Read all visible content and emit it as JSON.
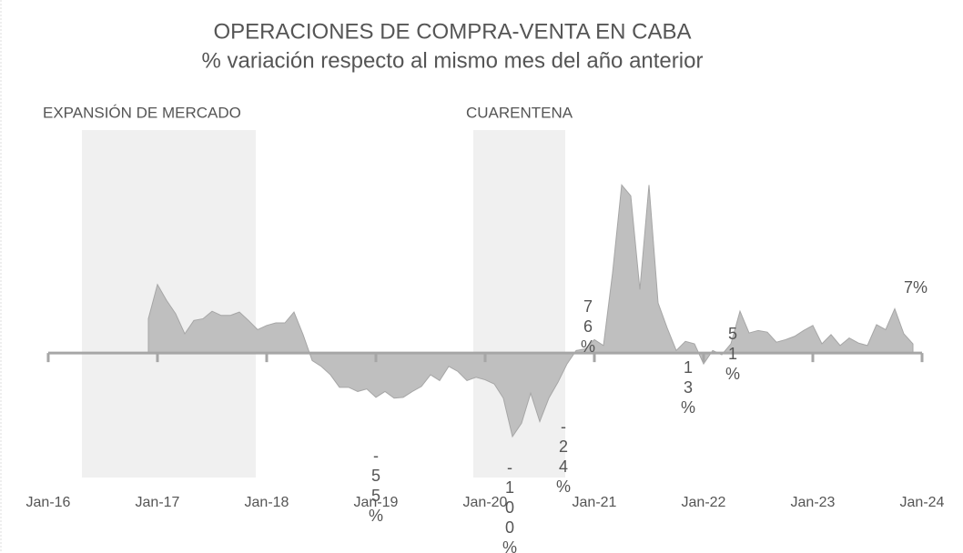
{
  "chart_data": {
    "type": "area",
    "title": "OPERACIONES DE COMPRA-VENTA EN CABA",
    "subtitle": "% variación respecto al mismo mes del año anterior",
    "x": [
      "2016-12",
      "2017-01",
      "2017-02",
      "2017-03",
      "2017-04",
      "2017-05",
      "2017-06",
      "2017-07",
      "2017-08",
      "2017-09",
      "2017-10",
      "2017-11",
      "2017-12",
      "2018-01",
      "2018-02",
      "2018-03",
      "2018-04",
      "2018-05",
      "2018-06",
      "2018-07",
      "2018-08",
      "2018-09",
      "2018-10",
      "2018-11",
      "2018-12",
      "2019-01",
      "2019-02",
      "2019-03",
      "2019-04",
      "2019-05",
      "2019-06",
      "2019-07",
      "2019-08",
      "2019-09",
      "2019-10",
      "2019-11",
      "2019-12",
      "2020-01",
      "2020-02",
      "2020-03",
      "2020-04",
      "2020-05",
      "2020-06",
      "2020-07",
      "2020-08",
      "2020-09",
      "2020-10",
      "2020-11",
      "2020-12",
      "2021-01",
      "2021-02",
      "2021-03",
      "2021-04",
      "2021-05",
      "2021-06",
      "2021-07",
      "2021-08",
      "2021-09",
      "2021-10",
      "2021-11",
      "2021-12",
      "2022-01",
      "2022-02",
      "2022-03",
      "2022-04",
      "2022-05",
      "2022-06",
      "2022-07",
      "2022-08",
      "2022-09",
      "2022-10",
      "2022-11",
      "2022-12",
      "2023-01",
      "2023-02",
      "2023-03",
      "2023-04",
      "2023-05",
      "2023-06",
      "2023-07",
      "2023-08",
      "2023-09",
      "2023-10",
      "2023-11",
      "2023-12"
    ],
    "values": [
      41,
      82,
      63,
      47,
      23,
      39,
      41,
      50,
      45,
      45,
      49,
      39,
      28,
      33,
      36,
      36,
      49,
      22,
      -9,
      -16,
      -26,
      -41,
      -41,
      -46,
      -43,
      -53,
      -46,
      -54,
      -53,
      -46,
      -40,
      -26,
      -33,
      -16,
      -22,
      -33,
      -29,
      -32,
      -37,
      -54,
      -100,
      -84,
      -48,
      -82,
      -54,
      -35,
      -13,
      3,
      5,
      16,
      9,
      96,
      201,
      188,
      76,
      201,
      60,
      30,
      3,
      14,
      11,
      -13,
      3,
      -2,
      11,
      50,
      24,
      27,
      25,
      13,
      16,
      20,
      27,
      33,
      11,
      22,
      9,
      18,
      12,
      9,
      34,
      28,
      53,
      23,
      11
    ],
    "color": "#bfbfbf",
    "xlim": [
      "2016-01",
      "2024-01"
    ],
    "xticks": [
      {
        "value": "2016-01",
        "label": "Jan-16"
      },
      {
        "value": "2017-01",
        "label": "Jan-17"
      },
      {
        "value": "2018-01",
        "label": "Jan-18"
      },
      {
        "value": "2019-01",
        "label": "Jan-19"
      },
      {
        "value": "2020-01",
        "label": "Jan-20"
      },
      {
        "value": "2021-01",
        "label": "Jan-21"
      },
      {
        "value": "2022-01",
        "label": "Jan-22"
      },
      {
        "value": "2023-01",
        "label": "Jan-23"
      },
      {
        "value": "2024-01",
        "label": "Jan-24"
      }
    ],
    "ylim": [
      -150,
      270
    ],
    "bands": [
      {
        "label": "EXPANSIÓN DE MERCADO",
        "start": "2016-05",
        "end": "2017-12"
      },
      {
        "label": "CUARENTENA",
        "start": "2019-12",
        "end": "2020-10"
      }
    ],
    "annotations": [
      "76%",
      "-55%",
      "-100%",
      "-24%",
      "13%",
      "51%",
      "7%"
    ]
  }
}
